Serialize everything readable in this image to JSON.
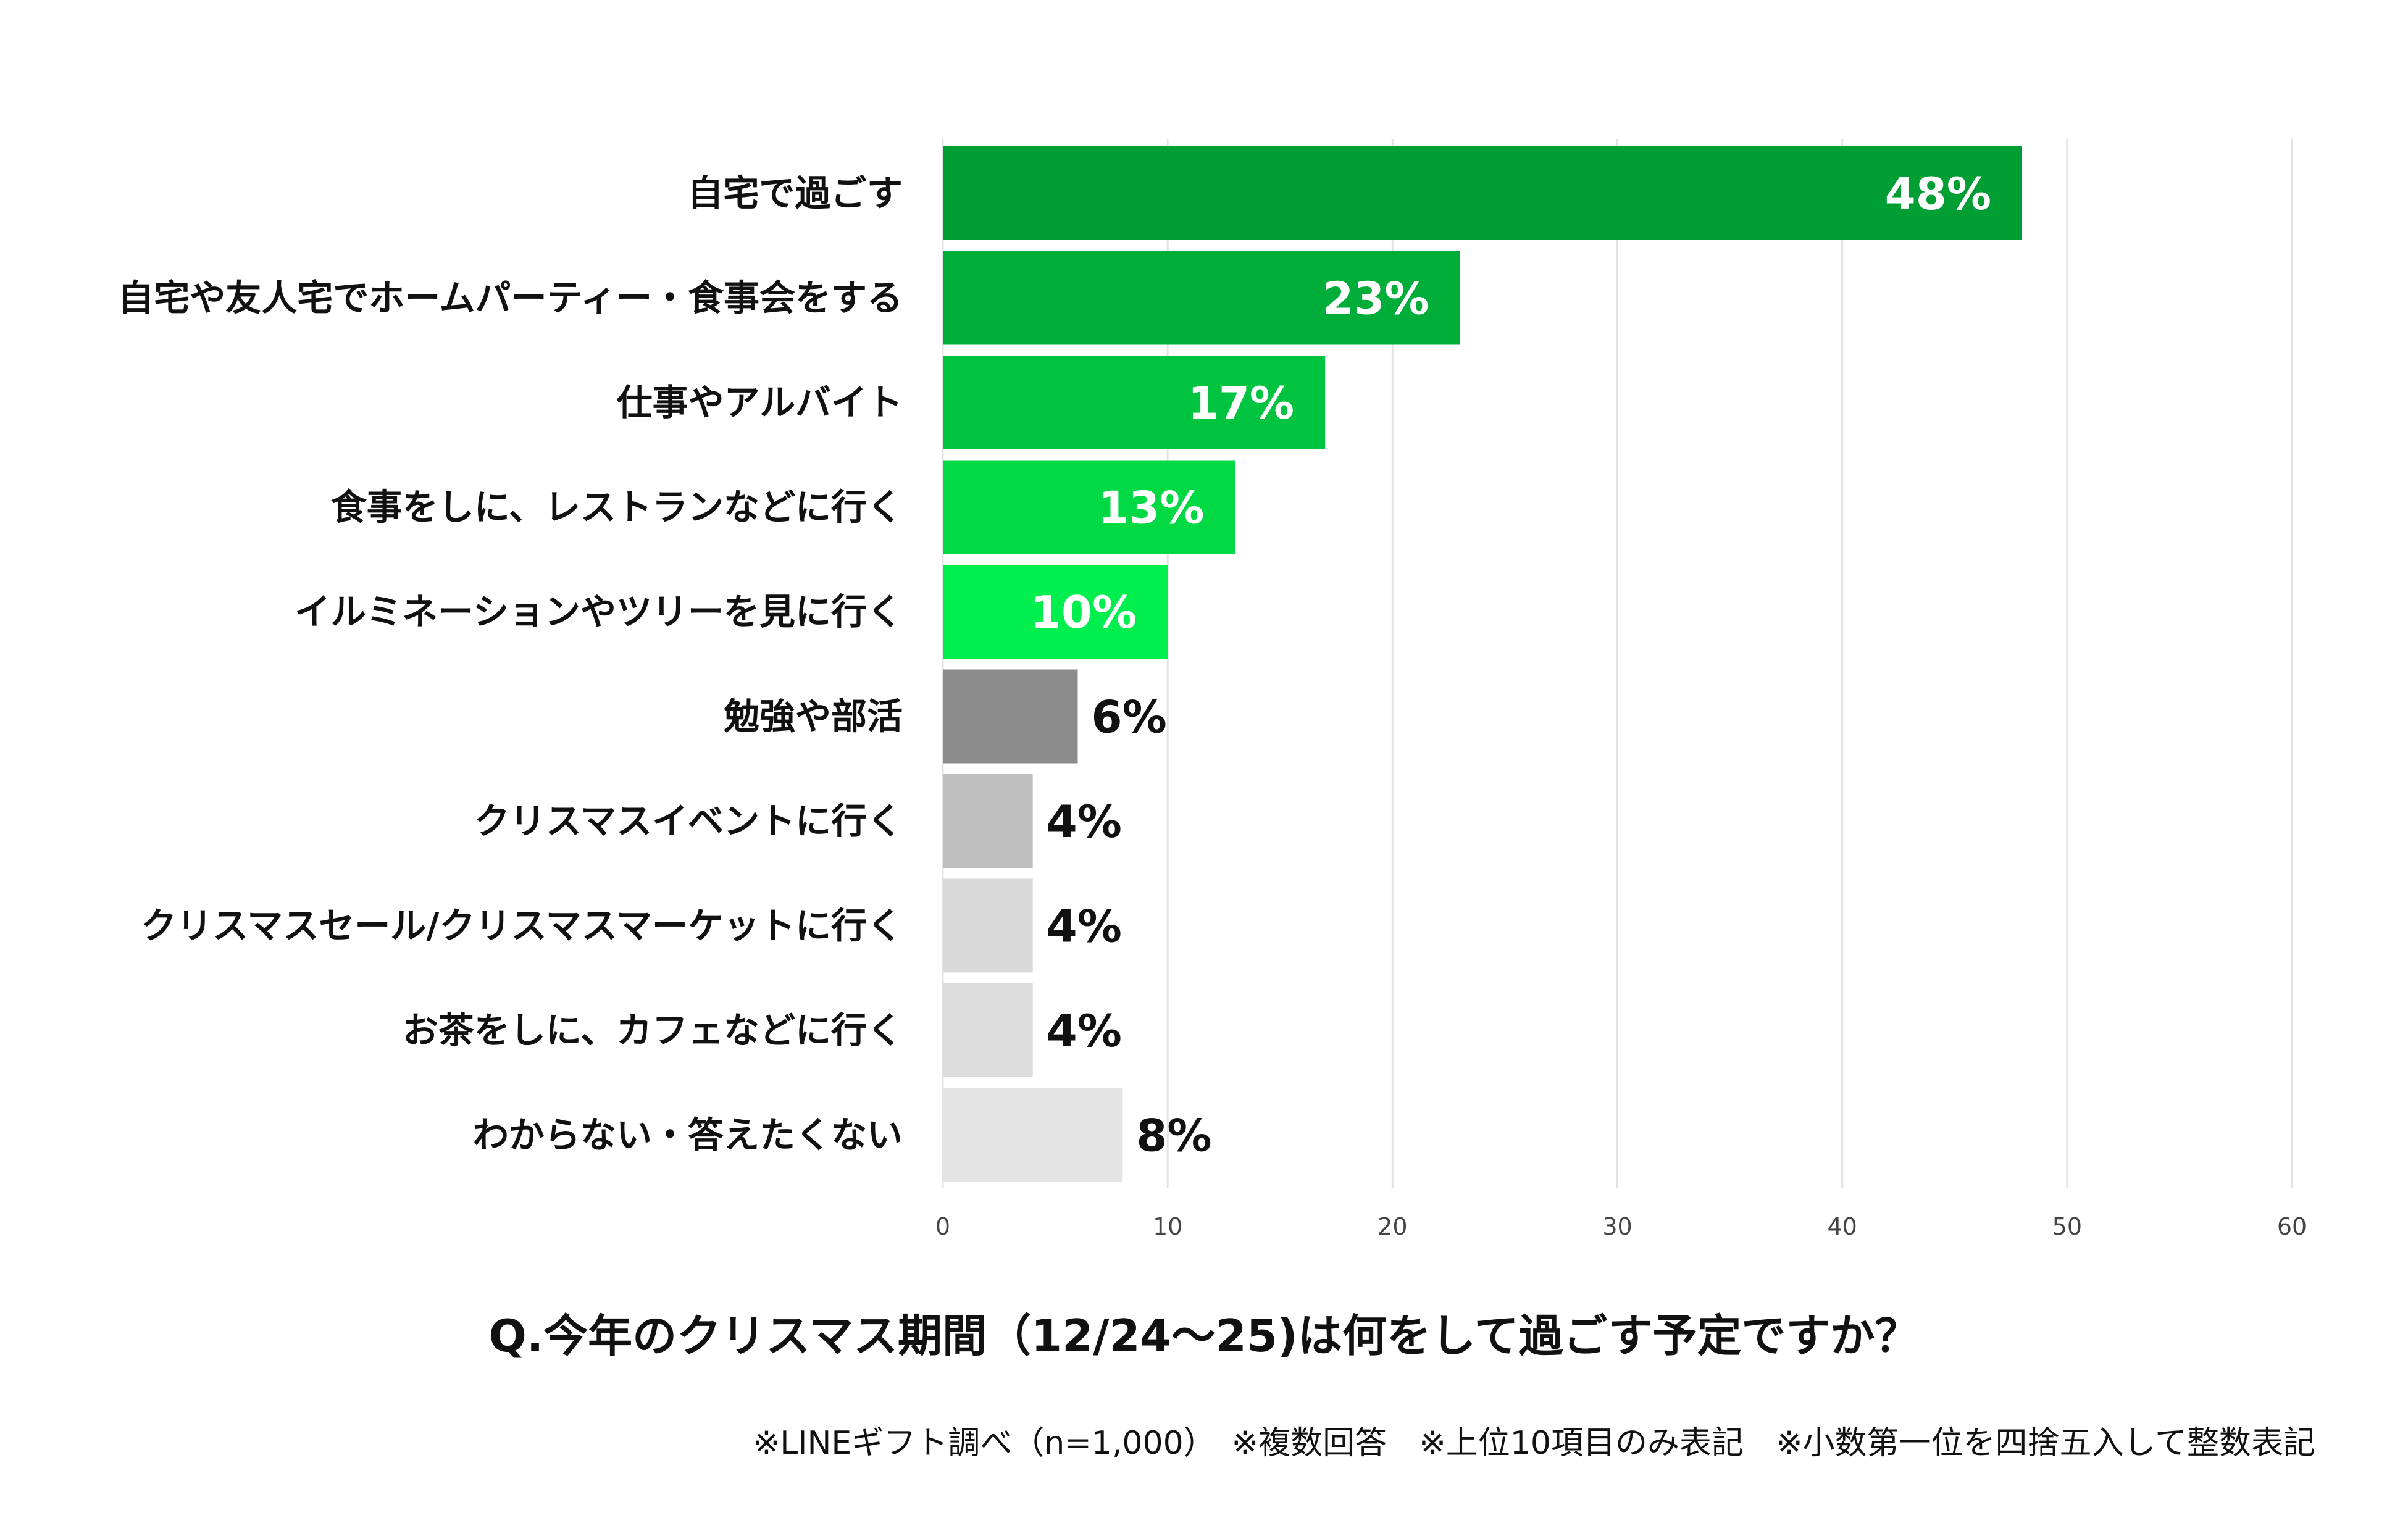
{
  "chart_data": {
    "type": "bar",
    "orientation": "horizontal",
    "categories": [
      "自宅で過ごす",
      "自宅や友人宅でホームパーティー・食事会をする",
      "仕事やアルバイト",
      "食事をしに、レストランなどに行く",
      "イルミネーションやツリーを見に行く",
      "勉強や部活",
      "クリスマスイベントに行く",
      "クリスマスセール/クリスマスマーケットに行く",
      "お茶をしに、カフェなどに行く",
      "わからない・答えたくない"
    ],
    "values": [
      48,
      23,
      17,
      13,
      10,
      6,
      4,
      4,
      4,
      8
    ],
    "value_labels": [
      "48%",
      "23%",
      "17%",
      "13%",
      "10%",
      "6%",
      "4%",
      "4%",
      "4%",
      "8%"
    ],
    "bar_colors": [
      "#009e33",
      "#00ad39",
      "#00c43f",
      "#00d844",
      "#00ee4e",
      "#8c8c8c",
      "#bfbfbf",
      "#d9d9d9",
      "#dcdcdc",
      "#e4e4e4"
    ],
    "label_colors": [
      "#ffffff",
      "#ffffff",
      "#ffffff",
      "#ffffff",
      "#ffffff",
      "#111111",
      "#111111",
      "#111111",
      "#111111",
      "#111111"
    ],
    "label_inside": [
      true,
      true,
      true,
      true,
      true,
      false,
      false,
      false,
      false,
      false
    ],
    "xlim": [
      0,
      60
    ],
    "x_ticks": [
      0,
      10,
      20,
      30,
      40,
      50,
      60
    ],
    "grid": true,
    "title": "Q.今年のクリスマス期間（12/24～25)は何をして過ごす予定ですか？",
    "note": "※LINEギフト調べ（n=1,000）　※複数回答　※上位10項目のみ表記　※小数第一位を四捨五入して整数表記"
  }
}
